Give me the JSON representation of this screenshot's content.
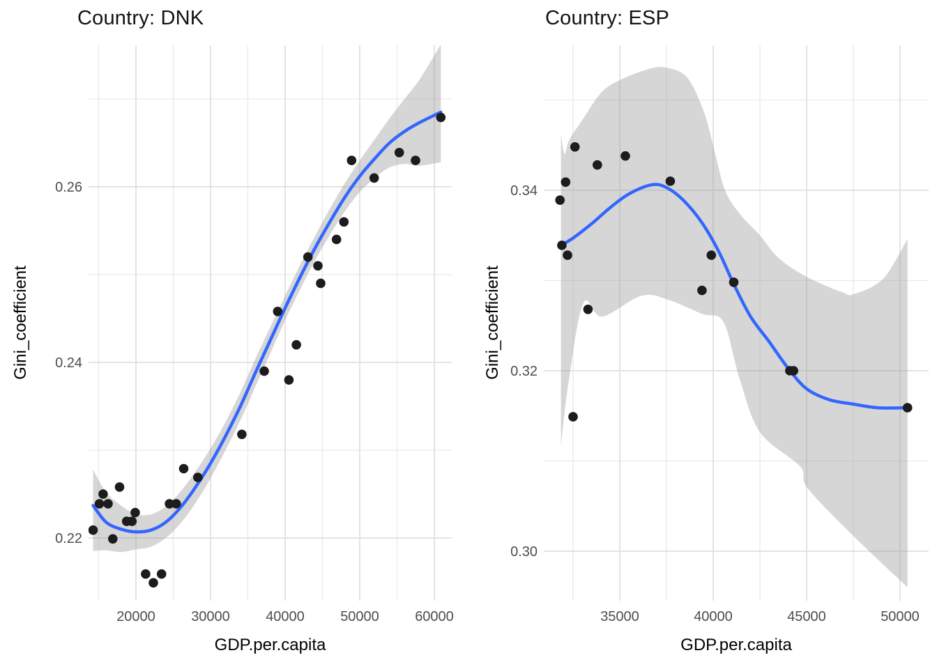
{
  "figure": {
    "background": "#ffffff"
  },
  "colors": {
    "smooth_line": "#3366FF",
    "point": "#1c1c1c",
    "band_fill": "#999999",
    "band_opacity": 0.4,
    "grid_major": "#e3e3e3",
    "grid_minor": "#e9e9e9",
    "tick_text": "#4d4d4d",
    "title_text": "#121212",
    "axis_title_text": "#000000"
  },
  "chart_data": [
    {
      "type": "scatter",
      "title": "Country: DNK",
      "xlabel": "GDP.per.capita",
      "ylabel": "Gini_coefficient",
      "legend": "none",
      "grid": "on",
      "xlim": [
        13645,
        62336
      ],
      "ylim": [
        0.21286,
        0.27611
      ],
      "x_major_ticks": [
        {
          "value": 20000,
          "label": "20000"
        },
        {
          "value": 30000,
          "label": "30000"
        },
        {
          "value": 40000,
          "label": "40000"
        },
        {
          "value": 50000,
          "label": "50000"
        },
        {
          "value": 60000,
          "label": "60000"
        }
      ],
      "x_minor_ticks": [
        15000,
        25000,
        35000,
        45000,
        55000
      ],
      "y_major_ticks": [
        {
          "value": 0.26,
          "label": "0.26"
        },
        {
          "value": 0.24,
          "label": "0.24"
        },
        {
          "value": 0.22,
          "label": "0.22"
        }
      ],
      "y_minor_ticks": [
        0.27,
        0.25,
        0.23
      ],
      "points": [
        [
          14250,
          0.2209
        ],
        [
          15100,
          0.2239
        ],
        [
          15600,
          0.225
        ],
        [
          16260,
          0.2239
        ],
        [
          16900,
          0.2199
        ],
        [
          17800,
          0.2258
        ],
        [
          18760,
          0.2219
        ],
        [
          19470,
          0.2219
        ],
        [
          19900,
          0.2229
        ],
        [
          21300,
          0.2159
        ],
        [
          22340,
          0.2149
        ],
        [
          23430,
          0.2159
        ],
        [
          24500,
          0.2239
        ],
        [
          25400,
          0.2239
        ],
        [
          26400,
          0.2279
        ],
        [
          28300,
          0.2269
        ],
        [
          34200,
          0.2318
        ],
        [
          37200,
          0.239
        ],
        [
          39000,
          0.2458
        ],
        [
          40500,
          0.238
        ],
        [
          41500,
          0.242
        ],
        [
          43060,
          0.252
        ],
        [
          44390,
          0.251
        ],
        [
          44770,
          0.249
        ],
        [
          46890,
          0.254
        ],
        [
          47880,
          0.256
        ],
        [
          48910,
          0.263
        ],
        [
          51930,
          0.261
        ],
        [
          55300,
          0.2639
        ],
        [
          57480,
          0.263
        ],
        [
          60870,
          0.2679
        ]
      ],
      "smooth_line": [
        [
          14250,
          0.2237
        ],
        [
          16000,
          0.2218
        ],
        [
          18000,
          0.221
        ],
        [
          20000,
          0.2207
        ],
        [
          22000,
          0.2209
        ],
        [
          24000,
          0.2218
        ],
        [
          26000,
          0.2235
        ],
        [
          28000,
          0.2258
        ],
        [
          30000,
          0.2285
        ],
        [
          32000,
          0.2316
        ],
        [
          34000,
          0.235
        ],
        [
          36000,
          0.2388
        ],
        [
          38000,
          0.2425
        ],
        [
          40000,
          0.2462
        ],
        [
          42000,
          0.2497
        ],
        [
          44000,
          0.253
        ],
        [
          46000,
          0.256
        ],
        [
          48000,
          0.2588
        ],
        [
          50000,
          0.2612
        ],
        [
          52000,
          0.2632
        ],
        [
          54000,
          0.265
        ],
        [
          56000,
          0.2663
        ],
        [
          58000,
          0.2673
        ],
        [
          60870,
          0.2685
        ]
      ],
      "ci_band_upper": [
        [
          14250,
          0.2278
        ],
        [
          16000,
          0.2252
        ],
        [
          18000,
          0.2237
        ],
        [
          20000,
          0.2227
        ],
        [
          22000,
          0.2227
        ],
        [
          24000,
          0.2236
        ],
        [
          26000,
          0.2253
        ],
        [
          28000,
          0.2276
        ],
        [
          30000,
          0.2302
        ],
        [
          32000,
          0.2332
        ],
        [
          34000,
          0.2366
        ],
        [
          36000,
          0.2404
        ],
        [
          38000,
          0.244
        ],
        [
          40000,
          0.2476
        ],
        [
          42000,
          0.2511
        ],
        [
          44000,
          0.2544
        ],
        [
          46000,
          0.2575
        ],
        [
          48000,
          0.2604
        ],
        [
          50000,
          0.263
        ],
        [
          52000,
          0.2654
        ],
        [
          54000,
          0.2678
        ],
        [
          56000,
          0.27
        ],
        [
          58000,
          0.2722
        ],
        [
          60870,
          0.2762
        ]
      ],
      "ci_band_lower": [
        [
          14250,
          0.2185
        ],
        [
          16000,
          0.2186
        ],
        [
          18000,
          0.2184
        ],
        [
          20000,
          0.2187
        ],
        [
          22000,
          0.219
        ],
        [
          24000,
          0.22
        ],
        [
          26000,
          0.2217
        ],
        [
          28000,
          0.224
        ],
        [
          30000,
          0.2268
        ],
        [
          32000,
          0.23
        ],
        [
          34000,
          0.2334
        ],
        [
          36000,
          0.2372
        ],
        [
          38000,
          0.241
        ],
        [
          40000,
          0.2448
        ],
        [
          42000,
          0.2483
        ],
        [
          44000,
          0.2516
        ],
        [
          46000,
          0.2545
        ],
        [
          48000,
          0.2572
        ],
        [
          50000,
          0.2594
        ],
        [
          52000,
          0.261
        ],
        [
          54000,
          0.2622
        ],
        [
          56000,
          0.2626
        ],
        [
          58000,
          0.2624
        ],
        [
          60870,
          0.2628
        ]
      ]
    },
    {
      "type": "scatter",
      "title": "Country: ESP",
      "xlabel": "GDP.per.capita",
      "ylabel": "Gini_coefficient",
      "legend": "none",
      "grid": "on",
      "xlim": [
        30933,
        51530
      ],
      "ylim": [
        0.29452,
        0.35606
      ],
      "x_major_ticks": [
        {
          "value": 35000,
          "label": "35000"
        },
        {
          "value": 40000,
          "label": "40000"
        },
        {
          "value": 45000,
          "label": "45000"
        },
        {
          "value": 50000,
          "label": "50000"
        }
      ],
      "x_minor_ticks": [
        32500,
        37500,
        42500,
        47500
      ],
      "y_major_ticks": [
        {
          "value": 0.34,
          "label": "0.34"
        },
        {
          "value": 0.32,
          "label": "0.32"
        },
        {
          "value": 0.3,
          "label": "0.30"
        }
      ],
      "y_minor_ticks": [
        0.35,
        0.33,
        0.31
      ],
      "points": [
        [
          32600,
          0.3448
        ],
        [
          33800,
          0.3428
        ],
        [
          35300,
          0.3438
        ],
        [
          37700,
          0.341
        ],
        [
          32100,
          0.3409
        ],
        [
          31800,
          0.3389
        ],
        [
          31900,
          0.3339
        ],
        [
          32200,
          0.3328
        ],
        [
          33300,
          0.3268
        ],
        [
          39900,
          0.3328
        ],
        [
          39400,
          0.3289
        ],
        [
          41100,
          0.3298
        ],
        [
          32500,
          0.3149
        ],
        [
          44100,
          0.32
        ],
        [
          44300,
          0.32
        ],
        [
          50400,
          0.3159
        ]
      ],
      "smooth_line": [
        [
          31850,
          0.3339
        ],
        [
          32500,
          0.3347
        ],
        [
          33500,
          0.3363
        ],
        [
          34500,
          0.3381
        ],
        [
          35500,
          0.3396
        ],
        [
          36700,
          0.3406
        ],
        [
          37500,
          0.3403
        ],
        [
          38400,
          0.3389
        ],
        [
          39400,
          0.3364
        ],
        [
          40300,
          0.3332
        ],
        [
          41100,
          0.3296
        ],
        [
          42000,
          0.326
        ],
        [
          43000,
          0.3232
        ],
        [
          44000,
          0.3203
        ],
        [
          45000,
          0.318
        ],
        [
          46200,
          0.3168
        ],
        [
          47500,
          0.3163
        ],
        [
          48800,
          0.3159
        ],
        [
          50400,
          0.3159
        ]
      ],
      "ci_band_upper": [
        [
          31850,
          0.3462
        ],
        [
          32050,
          0.344
        ],
        [
          32300,
          0.3456
        ],
        [
          33000,
          0.3478
        ],
        [
          34000,
          0.3508
        ],
        [
          35000,
          0.3522
        ],
        [
          36500,
          0.3534
        ],
        [
          37450,
          0.3536
        ],
        [
          38600,
          0.3525
        ],
        [
          39500,
          0.3487
        ],
        [
          40100,
          0.3441
        ],
        [
          40650,
          0.3399
        ],
        [
          41500,
          0.3372
        ],
        [
          42500,
          0.335
        ],
        [
          43500,
          0.3325
        ],
        [
          45000,
          0.3304
        ],
        [
          46900,
          0.3287
        ],
        [
          47550,
          0.3285
        ],
        [
          49100,
          0.3302
        ],
        [
          50400,
          0.3346
        ]
      ],
      "ci_band_lower": [
        [
          31850,
          0.3117
        ],
        [
          32250,
          0.3186
        ],
        [
          33050,
          0.3275
        ],
        [
          34050,
          0.326
        ],
        [
          36150,
          0.3283
        ],
        [
          37550,
          0.3279
        ],
        [
          39400,
          0.3263
        ],
        [
          40550,
          0.3254
        ],
        [
          41400,
          0.3192
        ],
        [
          42500,
          0.3132
        ],
        [
          44650,
          0.3094
        ],
        [
          45050,
          0.307
        ],
        [
          47550,
          0.3016
        ],
        [
          50400,
          0.296
        ]
      ]
    }
  ]
}
